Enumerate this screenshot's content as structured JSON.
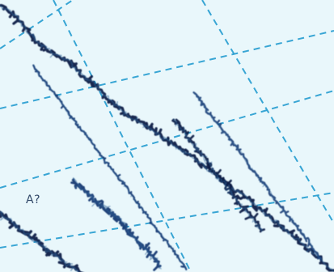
{
  "chart_data": {
    "type": "line",
    "title": "",
    "xlabel": "",
    "ylabel": "",
    "grid": true,
    "legend": "",
    "annotations": [
      {
        "text": "A?"
      }
    ],
    "colors": {
      "background": "#e9f7fb",
      "grid": "#2a9fd1",
      "line_dark": "#0b1e46",
      "line_main": "#163a73",
      "line_light": "#2e5f96",
      "label": "#314868"
    },
    "series": [
      {
        "values": [
          [
            0.0,
            0.98
          ],
          [
            0.04,
            0.95
          ],
          [
            0.08,
            0.89
          ],
          [
            0.11,
            0.85
          ],
          [
            0.14,
            0.82
          ],
          [
            0.18,
            0.79
          ],
          [
            0.21,
            0.77
          ],
          [
            0.24,
            0.73
          ],
          [
            0.27,
            0.7
          ],
          [
            0.3,
            0.67
          ],
          [
            0.33,
            0.63
          ],
          [
            0.36,
            0.6
          ],
          [
            0.39,
            0.57
          ],
          [
            0.42,
            0.55
          ],
          [
            0.45,
            0.53
          ],
          [
            0.48,
            0.5
          ],
          [
            0.51,
            0.48
          ],
          [
            0.54,
            0.45
          ],
          [
            0.57,
            0.43
          ],
          [
            0.6,
            0.4
          ],
          [
            0.63,
            0.37
          ],
          [
            0.66,
            0.34
          ],
          [
            0.69,
            0.31
          ],
          [
            0.72,
            0.29
          ],
          [
            0.75,
            0.26
          ],
          [
            0.78,
            0.23
          ],
          [
            0.81,
            0.2
          ],
          [
            0.84,
            0.17
          ],
          [
            0.87,
            0.14
          ],
          [
            0.9,
            0.11
          ],
          [
            0.94,
            0.07
          ],
          [
            1.0,
            0.0
          ]
        ]
      },
      {
        "values": [
          [
            0.1,
            0.76
          ],
          [
            0.12,
            0.72
          ],
          [
            0.14,
            0.69
          ],
          [
            0.16,
            0.66
          ],
          [
            0.18,
            0.63
          ],
          [
            0.2,
            0.59
          ],
          [
            0.22,
            0.56
          ],
          [
            0.24,
            0.53
          ],
          [
            0.26,
            0.5
          ],
          [
            0.28,
            0.47
          ],
          [
            0.3,
            0.43
          ],
          [
            0.32,
            0.4
          ],
          [
            0.34,
            0.37
          ],
          [
            0.36,
            0.34
          ],
          [
            0.38,
            0.31
          ],
          [
            0.4,
            0.27
          ],
          [
            0.42,
            0.24
          ],
          [
            0.44,
            0.21
          ],
          [
            0.46,
            0.17
          ],
          [
            0.48,
            0.14
          ],
          [
            0.5,
            0.11
          ],
          [
            0.52,
            0.08
          ],
          [
            0.54,
            0.04
          ],
          [
            0.56,
            0.01
          ]
        ]
      },
      {
        "values": [
          [
            0.22,
            0.34
          ],
          [
            0.24,
            0.31
          ],
          [
            0.26,
            0.29
          ],
          [
            0.28,
            0.27
          ],
          [
            0.3,
            0.25
          ],
          [
            0.32,
            0.23
          ],
          [
            0.34,
            0.21
          ],
          [
            0.36,
            0.19
          ],
          [
            0.38,
            0.16
          ],
          [
            0.4,
            0.13
          ],
          [
            0.42,
            0.1
          ],
          [
            0.44,
            0.08
          ],
          [
            0.46,
            0.05
          ],
          [
            0.48,
            0.02
          ]
        ]
      },
      {
        "values": [
          [
            0.52,
            0.56
          ],
          [
            0.54,
            0.53
          ],
          [
            0.56,
            0.5
          ],
          [
            0.58,
            0.47
          ],
          [
            0.6,
            0.44
          ],
          [
            0.62,
            0.41
          ],
          [
            0.64,
            0.37
          ],
          [
            0.66,
            0.34
          ],
          [
            0.68,
            0.31
          ],
          [
            0.7,
            0.28
          ],
          [
            0.72,
            0.25
          ],
          [
            0.74,
            0.22
          ],
          [
            0.76,
            0.19
          ],
          [
            0.78,
            0.15
          ]
        ]
      },
      {
        "values": [
          [
            0.58,
            0.66
          ],
          [
            0.6,
            0.63
          ],
          [
            0.62,
            0.59
          ],
          [
            0.64,
            0.56
          ],
          [
            0.66,
            0.53
          ],
          [
            0.68,
            0.5
          ],
          [
            0.7,
            0.47
          ],
          [
            0.72,
            0.44
          ],
          [
            0.74,
            0.4
          ],
          [
            0.76,
            0.37
          ],
          [
            0.78,
            0.34
          ],
          [
            0.8,
            0.31
          ],
          [
            0.82,
            0.27
          ],
          [
            0.84,
            0.24
          ],
          [
            0.86,
            0.21
          ],
          [
            0.88,
            0.18
          ],
          [
            0.9,
            0.15
          ],
          [
            0.92,
            0.12
          ],
          [
            0.94,
            0.08
          ],
          [
            0.96,
            0.05
          ]
        ]
      },
      {
        "values": [
          [
            0.0,
            0.22
          ],
          [
            0.03,
            0.19
          ],
          [
            0.06,
            0.16
          ],
          [
            0.09,
            0.13
          ],
          [
            0.12,
            0.1
          ],
          [
            0.15,
            0.07
          ],
          [
            0.18,
            0.05
          ],
          [
            0.21,
            0.02
          ],
          [
            0.24,
            0.0
          ]
        ]
      }
    ]
  }
}
